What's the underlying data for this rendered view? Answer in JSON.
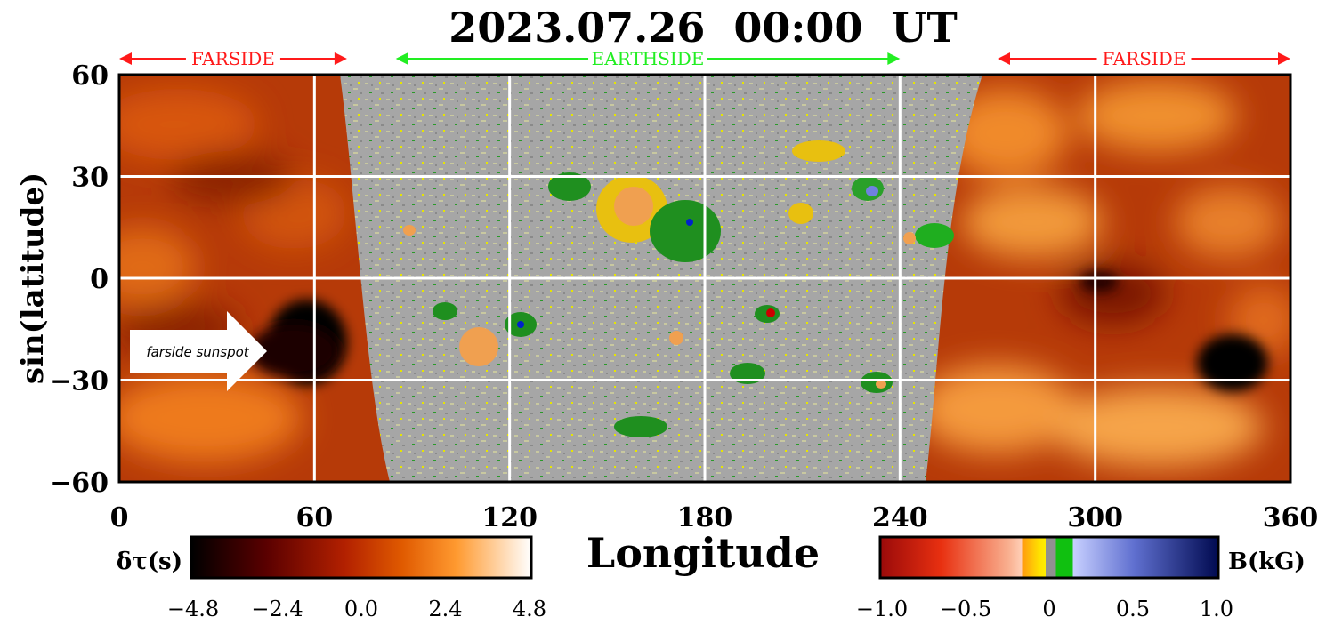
{
  "chart_data": {
    "type": "heatmap",
    "title": "2023.07.26  00:00  UT",
    "xlabel": "Longitude",
    "ylabel": "sin(latitude)",
    "xlim": [
      0,
      360
    ],
    "ylim": [
      -60,
      60
    ],
    "x_ticks": [
      0,
      60,
      120,
      180,
      240,
      300,
      360
    ],
    "y_ticks": [
      -60,
      -30,
      0,
      30,
      60
    ],
    "x_tick_labels": [
      "0",
      "60",
      "120",
      "180",
      "240",
      "300",
      "360"
    ],
    "y_tick_labels": [
      "−60",
      "−30",
      "0",
      "30",
      "60"
    ],
    "grid": true,
    "regions": [
      {
        "label": "FARSIDE",
        "x_range": [
          0,
          70
        ],
        "color": "#ff1a1a"
      },
      {
        "label": "EARTHSIDE",
        "x_range": [
          85,
          240
        ],
        "color": "#22ee22"
      },
      {
        "label": "FARSIDE",
        "x_range": [
          270,
          360
        ],
        "color": "#ff1a1a"
      }
    ],
    "annotation": {
      "text": "farside sunspot",
      "points_to": [
        57,
        -20
      ]
    },
    "colorbar_left": {
      "label": "δτ(s)",
      "ticks": [
        -4.8,
        -2.4,
        0.0,
        2.4,
        4.8
      ],
      "tick_labels": [
        "−4.8",
        "−2.4",
        "0.0",
        "2.4",
        "4.8"
      ]
    },
    "colorbar_right": {
      "label": "B(kG)",
      "ticks": [
        -1.0,
        -0.5,
        0,
        0.5,
        1.0
      ],
      "tick_labels": [
        "−1.0",
        "−0.5",
        "0",
        "0.5",
        "1.0"
      ]
    }
  }
}
